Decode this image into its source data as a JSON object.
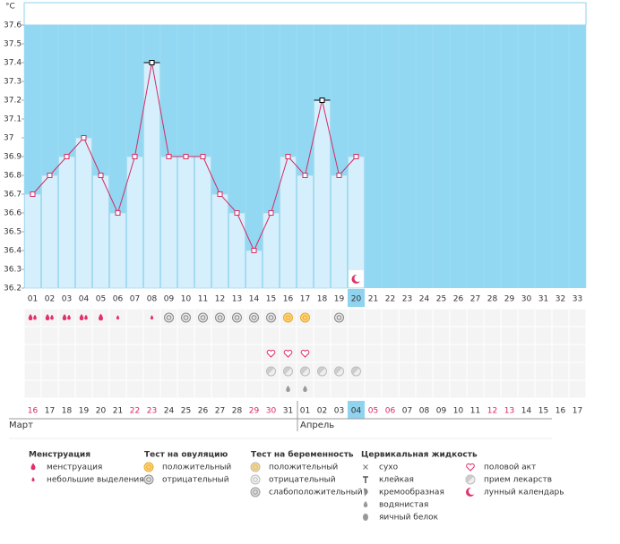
{
  "chart_data": {
    "type": "bar",
    "unit": "°C",
    "categories": [
      "01",
      "02",
      "03",
      "04",
      "05",
      "06",
      "07",
      "08",
      "09",
      "10",
      "11",
      "12",
      "13",
      "14",
      "15",
      "16",
      "17",
      "18",
      "19",
      "20",
      "21",
      "22",
      "23",
      "24",
      "25",
      "26",
      "27",
      "28",
      "29",
      "30",
      "31",
      "32",
      "33"
    ],
    "values": [
      36.7,
      36.8,
      36.9,
      37.0,
      36.8,
      36.6,
      36.9,
      37.4,
      36.9,
      36.9,
      36.9,
      36.7,
      36.6,
      36.4,
      36.6,
      36.9,
      36.8,
      37.2,
      36.8,
      36.9,
      null,
      null,
      null,
      null,
      null,
      null,
      null,
      null,
      null,
      null,
      null,
      null,
      null
    ],
    "ylim": [
      36.2,
      37.6
    ],
    "yticks": [
      36.2,
      36.3,
      36.4,
      36.5,
      36.6,
      36.7,
      36.8,
      36.9,
      37,
      37.1,
      37.2,
      37.3,
      37.4,
      37.5,
      37.6
    ],
    "bar_color": "#d5f0fc",
    "background": "#92d8f2",
    "line_color": "#d62a64",
    "peak_color": "#000000",
    "peaks": [
      7,
      17
    ],
    "highlight": 19,
    "rows": [
      [
        "drop2",
        "drop2",
        "drop2",
        "drop2",
        "drop",
        "small",
        null,
        "small",
        "neg",
        "neg",
        "neg",
        "neg",
        "neg",
        "neg",
        "neg",
        "pos",
        "pos",
        null,
        "neg",
        null,
        null,
        null,
        null,
        null,
        null,
        null,
        null,
        null,
        null,
        null,
        null,
        null,
        null
      ],
      [
        null,
        null,
        null,
        null,
        null,
        null,
        null,
        null,
        null,
        null,
        null,
        null,
        null,
        null,
        null,
        null,
        null,
        null,
        null,
        null,
        null,
        null,
        null,
        null,
        null,
        null,
        null,
        null,
        null,
        null,
        null,
        null,
        null
      ],
      [
        null,
        null,
        null,
        null,
        null,
        null,
        null,
        null,
        null,
        null,
        null,
        null,
        null,
        null,
        "heart",
        "heart",
        "heart",
        null,
        null,
        null,
        null,
        null,
        null,
        null,
        null,
        null,
        null,
        null,
        null,
        null,
        null,
        null,
        null
      ],
      [
        null,
        null,
        null,
        null,
        null,
        null,
        null,
        null,
        null,
        null,
        null,
        null,
        null,
        null,
        "pill",
        "pill",
        "pill",
        "pill",
        "pill",
        "pill",
        null,
        null,
        null,
        null,
        null,
        null,
        null,
        null,
        null,
        null,
        null,
        null,
        null
      ],
      [
        null,
        null,
        null,
        null,
        null,
        null,
        null,
        null,
        null,
        null,
        null,
        null,
        null,
        null,
        null,
        "water",
        "water",
        null,
        null,
        null,
        null,
        null,
        null,
        null,
        null,
        null,
        null,
        null,
        null,
        null,
        null,
        null,
        null
      ]
    ],
    "moon": [
      19
    ],
    "dates": [
      {
        "label": "16",
        "color": "#e0206a"
      },
      {
        "label": "17",
        "color": "#333"
      },
      {
        "label": "18",
        "color": "#333"
      },
      {
        "label": "19",
        "color": "#333"
      },
      {
        "label": "20",
        "color": "#333"
      },
      {
        "label": "21",
        "color": "#333"
      },
      {
        "label": "22",
        "color": "#e0206a"
      },
      {
        "label": "23",
        "color": "#e0206a"
      },
      {
        "label": "24",
        "color": "#333"
      },
      {
        "label": "25",
        "color": "#333"
      },
      {
        "label": "26",
        "color": "#333"
      },
      {
        "label": "27",
        "color": "#333"
      },
      {
        "label": "28",
        "color": "#333"
      },
      {
        "label": "29",
        "color": "#e0206a"
      },
      {
        "label": "30",
        "color": "#e0206a"
      },
      {
        "label": "31",
        "color": "#333"
      },
      {
        "label": "01",
        "color": "#333"
      },
      {
        "label": "02",
        "color": "#333"
      },
      {
        "label": "03",
        "color": "#333"
      },
      {
        "label": "04",
        "color": "#333"
      },
      {
        "label": "05",
        "color": "#e0206a"
      },
      {
        "label": "06",
        "color": "#e0206a"
      },
      {
        "label": "07",
        "color": "#333"
      },
      {
        "label": "08",
        "color": "#333"
      },
      {
        "label": "09",
        "color": "#333"
      },
      {
        "label": "10",
        "color": "#333"
      },
      {
        "label": "11",
        "color": "#333"
      },
      {
        "label": "12",
        "color": "#e0206a"
      },
      {
        "label": "13",
        "color": "#e0206a"
      },
      {
        "label": "14",
        "color": "#333"
      },
      {
        "label": "15",
        "color": "#333"
      },
      {
        "label": "16",
        "color": "#333"
      },
      {
        "label": "17",
        "color": "#333"
      }
    ],
    "months": [
      {
        "label": "Март",
        "start": 0
      },
      {
        "label": "Апрель",
        "start": 16
      }
    ],
    "legend": [
      {
        "title": "Менструация",
        "items": [
          {
            "icon": "drop",
            "label": "менструация"
          },
          {
            "icon": "small",
            "label": "небольшие выделения"
          }
        ]
      },
      {
        "title": "Тест на овуляцию",
        "items": [
          {
            "icon": "pos",
            "label": "положительный"
          },
          {
            "icon": "neg",
            "label": "отрицательный"
          }
        ]
      },
      {
        "title": "Тест на беременность",
        "items": [
          {
            "icon": "ppos",
            "label": "положительный"
          },
          {
            "icon": "pneg",
            "label": "отрицательный"
          },
          {
            "icon": "pweak",
            "label": "слабоположительный"
          }
        ]
      },
      {
        "title": "Цервикальная жидкость",
        "items": [
          {
            "icon": "dry",
            "label": "сухо"
          },
          {
            "icon": "sticky",
            "label": "клейкая"
          },
          {
            "icon": "creamy",
            "label": "кремообразная"
          },
          {
            "icon": "water",
            "label": "водянистая"
          },
          {
            "icon": "egg",
            "label": "яичный белок"
          }
        ]
      },
      {
        "items": [
          {
            "icon": "heart",
            "label": "половой акт"
          },
          {
            "icon": "pill",
            "label": "прием лекарств"
          },
          {
            "icon": "moon",
            "label": "лунный календарь"
          }
        ]
      }
    ]
  }
}
